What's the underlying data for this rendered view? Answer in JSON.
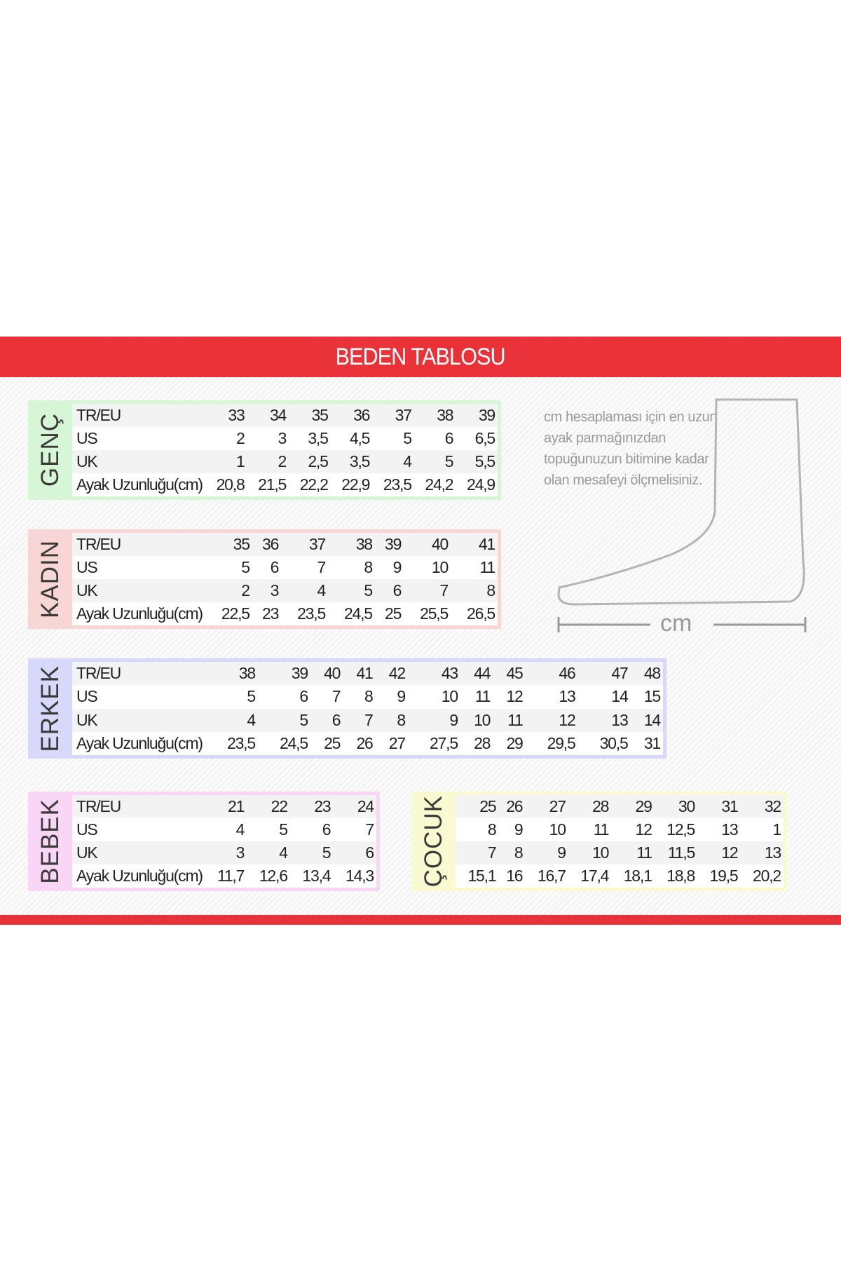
{
  "title": "BEDEN TABLOSU",
  "note": "cm hesaplaması için en uzun ayak parmağınızdan topuğunuzun bitimine kadar olan mesafeyi ölçmelisiniz.",
  "measure_label": "cm",
  "colors": {
    "banner": "#ec2f37",
    "genc": "#d6f6d6",
    "kadin": "#f9d6d6",
    "erkek": "#d8d8fa",
    "bebek": "#f9d6f6",
    "cocuk": "#f9f9d2"
  },
  "tables": {
    "genc": {
      "label": "GENÇ",
      "rows": [
        {
          "name": "TR/EU",
          "values": [
            "33",
            "34",
            "35",
            "36",
            "37",
            "38",
            "39"
          ]
        },
        {
          "name": "US",
          "values": [
            "2",
            "3",
            "3,5",
            "4,5",
            "5",
            "6",
            "6,5"
          ]
        },
        {
          "name": "UK",
          "values": [
            "1",
            "2",
            "2,5",
            "3,5",
            "4",
            "5",
            "5,5"
          ]
        },
        {
          "name": "Ayak Uzunluğu(cm)",
          "values": [
            "20,8",
            "21,5",
            "22,2",
            "22,9",
            "23,5",
            "24,2",
            "24,9"
          ]
        }
      ]
    },
    "kadin": {
      "label": "KADIN",
      "rows": [
        {
          "name": "TR/EU",
          "values": [
            "35",
            "36",
            "37",
            "38",
            "39",
            "40",
            "41"
          ]
        },
        {
          "name": "US",
          "values": [
            "5",
            "6",
            "7",
            "8",
            "9",
            "10",
            "11"
          ]
        },
        {
          "name": "UK",
          "values": [
            "2",
            "3",
            "4",
            "5",
            "6",
            "7",
            "8"
          ]
        },
        {
          "name": "Ayak Uzunluğu(cm)",
          "values": [
            "22,5",
            "23",
            "23,5",
            "24,5",
            "25",
            "25,5",
            "26,5"
          ]
        }
      ]
    },
    "erkek": {
      "label": "ERKEK",
      "rows": [
        {
          "name": "TR/EU",
          "values": [
            "38",
            "39",
            "40",
            "41",
            "42",
            "43",
            "44",
            "45",
            "46",
            "47",
            "48"
          ]
        },
        {
          "name": "US",
          "values": [
            "5",
            "6",
            "7",
            "8",
            "9",
            "10",
            "11",
            "12",
            "13",
            "14",
            "15"
          ]
        },
        {
          "name": "UK",
          "values": [
            "4",
            "5",
            "6",
            "7",
            "8",
            "9",
            "10",
            "11",
            "12",
            "13",
            "14"
          ]
        },
        {
          "name": "Ayak Uzunluğu(cm)",
          "values": [
            "23,5",
            "24,5",
            "25",
            "26",
            "27",
            "27,5",
            "28",
            "29",
            "29,5",
            "30,5",
            "31"
          ]
        }
      ]
    },
    "bebek": {
      "label": "BEBEK",
      "rows": [
        {
          "name": "TR/EU",
          "values": [
            "21",
            "22",
            "23",
            "24"
          ]
        },
        {
          "name": "US",
          "values": [
            "4",
            "5",
            "6",
            "7"
          ]
        },
        {
          "name": "UK",
          "values": [
            "3",
            "4",
            "5",
            "6"
          ]
        },
        {
          "name": "Ayak Uzunluğu(cm)",
          "values": [
            "11,7",
            "12,6",
            "13,4",
            "14,3"
          ]
        }
      ]
    },
    "cocuk": {
      "label": "ÇOCUK",
      "rows": [
        {
          "values": [
            "25",
            "26",
            "27",
            "28",
            "29",
            "30",
            "31",
            "32"
          ]
        },
        {
          "values": [
            "8",
            "9",
            "10",
            "11",
            "12",
            "12,5",
            "13",
            "1"
          ]
        },
        {
          "values": [
            "7",
            "8",
            "9",
            "10",
            "11",
            "11,5",
            "12",
            "13"
          ]
        },
        {
          "values": [
            "15,1",
            "16",
            "16,7",
            "17,4",
            "18,1",
            "18,8",
            "19,5",
            "20,2"
          ]
        }
      ]
    }
  }
}
